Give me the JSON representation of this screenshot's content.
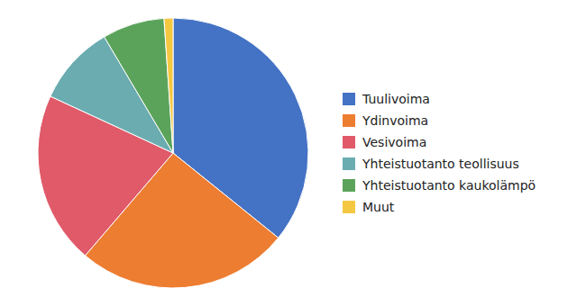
{
  "chart_data": {
    "type": "pie",
    "categories": [
      "Tuulivoima",
      "Ydinvoima",
      "Vesivoima",
      "Yhteistuotanto teollisuus",
      "Yhteistuotanto kaukolämpö",
      "Muut"
    ],
    "values": [
      3907,
      2777,
      2251,
      1047,
      811,
      117
    ],
    "colors": [
      "#4472C4",
      "#ED7D31",
      "#E05A6A",
      "#6AACB0",
      "#5BA35B",
      "#F5C842"
    ],
    "legend": "right"
  }
}
